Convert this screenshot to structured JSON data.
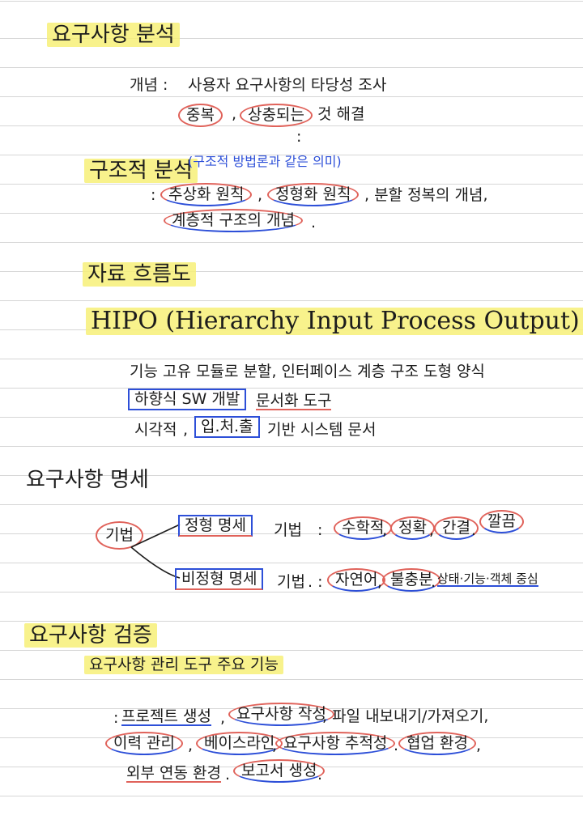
{
  "s1": {
    "title": "요구사항 분석",
    "concept_label": "개념 :",
    "concept_text": "사용자 요구사항의 타당성 조사",
    "dup": "중복",
    "conflict_prefix": ", ",
    "conflict": "상충되는",
    "conflict_suffix": " 것 해결",
    "dots": ":"
  },
  "s2": {
    "title": "구조적 분석",
    "note": "(구조적 방법론과 같은 의미)",
    "colon": ":",
    "abstract": "추상화 원칙",
    "comma1": ",",
    "formal": "정형화 원칙",
    "divide": ", 분할 정복의 개념,",
    "hier": "계층적 구조의 개념",
    "dot": "."
  },
  "s3": {
    "title": "자료 흐름도",
    "hipo": "HIPO (Hierarchy Input Process Output)",
    "line1": "기능 고유 모듈로 분할, 인터페이스 계층 구조 도형 양식",
    "topdown": "하향식 SW 개발",
    "doc_suffix": "문서화 도구",
    "visual": "시각적",
    "comma": ",",
    "ipo": "입.처.출",
    "ipo_suffix": "기반 시스템 문서"
  },
  "s4": {
    "title": "요구사항 명세",
    "method": "기법",
    "formal_spec": "정형 명세",
    "formal_method": "기법",
    "formal_colon": ":",
    "math": "수학적",
    "c1": ",",
    "accurate": "정확",
    "c2": ",",
    "concise": "간결",
    "c3": ".",
    "neat": "깔끔",
    "informal_spec": "비정형 명세",
    "informal_method": "기법",
    "informal_colon": ". :",
    "natural": "자연어",
    "c4": ",",
    "ambiguous": "불충분",
    "c5": ".",
    "desc": "상태·기능·객체 중심"
  },
  "s5": {
    "title": "요구사항 검증",
    "subtitle": "요구사항 관리 도구 주요 기능",
    "colon": ":",
    "project": "프로젝트 생성",
    "c1": ",",
    "req_write": "요구사항 작성",
    "file": ", 파일 내보내기/가져오기,",
    "history": "이력 관리",
    "c2": ",",
    "baseline": "베이스라인",
    "c3": ",",
    "trace": "요구사항 추적성",
    "c4": ".",
    "collab": "협업 환경",
    "c5": ",",
    "external": "외부 연동 환경",
    "c6": ".",
    "report": "보고서 생성",
    "end": "."
  }
}
